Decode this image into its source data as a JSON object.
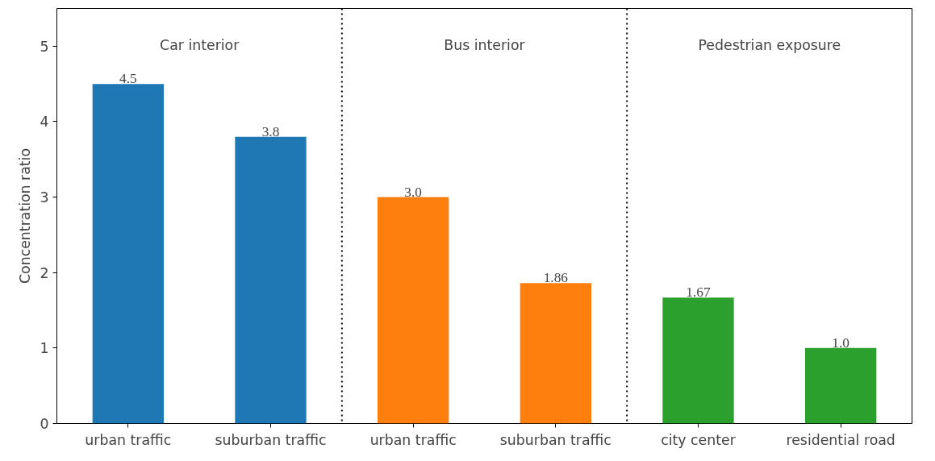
{
  "chart_data": {
    "type": "bar",
    "ylabel": "Concentration ratio",
    "categories": [
      "urban traffic",
      "suburban traffic",
      "urban traffic",
      "suburban traffic",
      "city center",
      "residential road"
    ],
    "values": [
      4.5,
      3.8,
      3.0,
      1.86,
      1.67,
      1.0
    ],
    "colors": [
      "#1f77b4",
      "#1f77b4",
      "#ff7f0e",
      "#ff7f0e",
      "#2ca02c",
      "#2ca02c"
    ],
    "value_labels": [
      "4.5",
      "3.8",
      "3.0",
      "1.86",
      "1.67",
      "1.0"
    ],
    "ylim": [
      0,
      5.5
    ],
    "yticks": [
      0,
      1,
      2,
      3,
      4,
      5
    ],
    "grid": false,
    "annotations": [
      "Car interior",
      "Bus interior",
      "Pedestrian exposure"
    ]
  }
}
